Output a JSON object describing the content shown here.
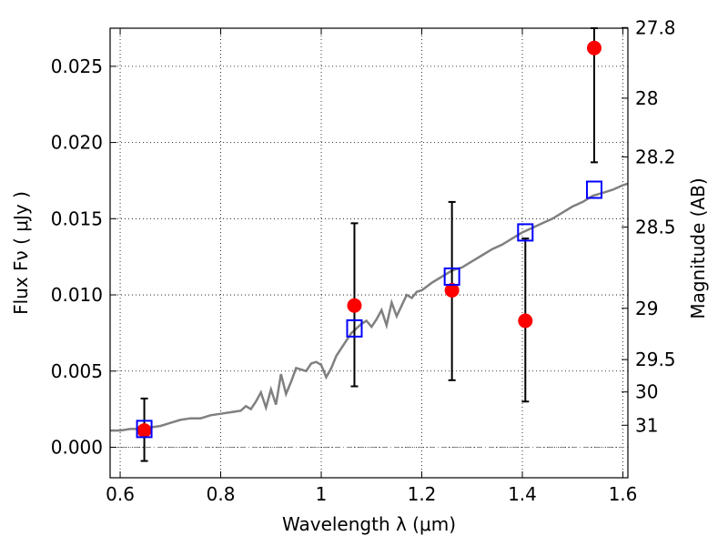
{
  "chart_data": {
    "type": "scatter",
    "title": "",
    "xlabel": "Wavelength  λ (μm)",
    "ylabel": "Flux  Fν  ( μJy )",
    "y2label": "Magnitude (AB)",
    "xlim": [
      0.58,
      1.61
    ],
    "ylim": [
      -0.002,
      0.0275
    ],
    "grid": true,
    "x_ticks": [
      "0.6",
      "0.8",
      "1",
      "1.2",
      "1.4",
      "1.6"
    ],
    "x_tick_values": [
      0.6,
      0.8,
      1.0,
      1.2,
      1.4,
      1.6
    ],
    "y_ticks": [
      "0.000",
      "0.005",
      "0.010",
      "0.015",
      "0.020",
      "0.025"
    ],
    "y_tick_values": [
      0.0,
      0.005,
      0.01,
      0.015,
      0.02,
      0.025
    ],
    "mag_ticks": [
      "27.8",
      "28",
      "28.2",
      "28.5",
      "29",
      "29.5",
      "30",
      "31"
    ],
    "mag_tick_values": [
      27.8,
      28.0,
      28.2,
      28.5,
      29.0,
      29.5,
      30.0,
      31.0
    ],
    "series": [
      {
        "kind": "observed",
        "color": "#ff0000",
        "points": [
          {
            "x": 0.648,
            "y": 0.0011,
            "yerr_low": 0.002,
            "yerr_high": 0.0021
          },
          {
            "x": 1.066,
            "y": 0.0093,
            "yerr_low": 0.0053,
            "yerr_high": 0.0054
          },
          {
            "x": 1.26,
            "y": 0.0103,
            "yerr_low": 0.0059,
            "yerr_high": 0.0058
          },
          {
            "x": 1.406,
            "y": 0.0083,
            "yerr_low": 0.0053,
            "yerr_high": 0.0054
          },
          {
            "x": 1.543,
            "y": 0.0262,
            "yerr_low": 0.0075,
            "yerr_high": 0.0013
          }
        ]
      },
      {
        "kind": "model-photometry",
        "color": "#0000ff",
        "points": [
          {
            "x": 0.648,
            "y": 0.0012
          },
          {
            "x": 1.066,
            "y": 0.0078
          },
          {
            "x": 1.26,
            "y": 0.0112
          },
          {
            "x": 1.406,
            "y": 0.0141
          },
          {
            "x": 1.543,
            "y": 0.0169
          }
        ]
      },
      {
        "kind": "model-spectrum",
        "color": "#808080",
        "x": [
          0.58,
          0.6,
          0.62,
          0.64,
          0.66,
          0.68,
          0.7,
          0.72,
          0.74,
          0.76,
          0.78,
          0.8,
          0.82,
          0.84,
          0.85,
          0.86,
          0.87,
          0.88,
          0.89,
          0.9,
          0.91,
          0.92,
          0.93,
          0.94,
          0.95,
          0.96,
          0.97,
          0.98,
          0.99,
          1.0,
          1.01,
          1.02,
          1.03,
          1.04,
          1.05,
          1.06,
          1.07,
          1.08,
          1.09,
          1.1,
          1.11,
          1.12,
          1.13,
          1.14,
          1.15,
          1.16,
          1.17,
          1.18,
          1.19,
          1.2,
          1.22,
          1.24,
          1.26,
          1.28,
          1.3,
          1.32,
          1.34,
          1.36,
          1.38,
          1.4,
          1.42,
          1.44,
          1.46,
          1.48,
          1.5,
          1.52,
          1.54,
          1.56,
          1.58,
          1.6,
          1.61
        ],
        "y": [
          0.0011,
          0.0011,
          0.0012,
          0.0012,
          0.0013,
          0.0014,
          0.0016,
          0.0018,
          0.0019,
          0.0019,
          0.0021,
          0.0022,
          0.0023,
          0.0024,
          0.0027,
          0.0025,
          0.003,
          0.0036,
          0.0026,
          0.0038,
          0.0028,
          0.0048,
          0.0035,
          0.0043,
          0.0052,
          0.0051,
          0.005,
          0.0055,
          0.0056,
          0.0054,
          0.0046,
          0.0052,
          0.006,
          0.0065,
          0.007,
          0.0075,
          0.0078,
          0.0081,
          0.0083,
          0.0079,
          0.0084,
          0.009,
          0.008,
          0.0095,
          0.0086,
          0.0093,
          0.01,
          0.0098,
          0.0102,
          0.0103,
          0.0108,
          0.0112,
          0.0116,
          0.0118,
          0.0122,
          0.0126,
          0.013,
          0.0133,
          0.0137,
          0.0141,
          0.0144,
          0.0147,
          0.015,
          0.0154,
          0.0158,
          0.0161,
          0.0165,
          0.0167,
          0.0169,
          0.0172,
          0.0173
        ]
      }
    ]
  }
}
